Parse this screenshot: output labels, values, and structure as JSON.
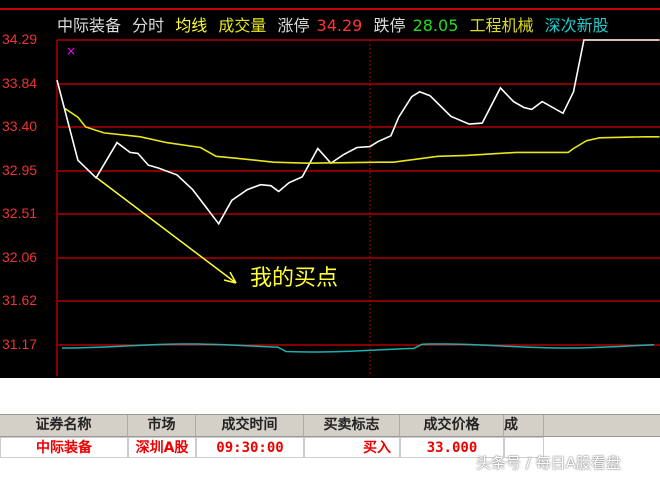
{
  "header": {
    "stock_name": "中际装备",
    "mode": "分时",
    "avg_line": "均线",
    "volume": "成交量",
    "limit_up_label": "涨停",
    "limit_up_value": "34.29",
    "limit_down_label": "跌停",
    "limit_down_value": "28.05",
    "industry": "工程机械",
    "board": "深次新股"
  },
  "colors": {
    "price_line": "#ffffff",
    "avg_line": "#e6e619",
    "grid": "#b00000",
    "indicator": "#1ab0b0",
    "annotation": "#ffff33",
    "marker": "#ff00ff"
  },
  "chart_data": {
    "type": "line",
    "y_ticks": [
      "34.29",
      "33.84",
      "33.40",
      "32.95",
      "32.51",
      "32.06",
      "31.62",
      "31.17"
    ],
    "ylim": [
      31.17,
      34.29
    ],
    "x_unit": "minutes since 09:30",
    "series": [
      {
        "role": "price",
        "points": [
          [
            0,
            33.88
          ],
          [
            8,
            33.06
          ],
          [
            15,
            32.88
          ],
          [
            23,
            33.24
          ],
          [
            28,
            33.14
          ],
          [
            31,
            33.13
          ],
          [
            35,
            33.01
          ],
          [
            39,
            32.98
          ],
          [
            46,
            32.91
          ],
          [
            52,
            32.76
          ],
          [
            58,
            32.55
          ],
          [
            62,
            32.41
          ],
          [
            67,
            32.65
          ],
          [
            73,
            32.76
          ],
          [
            78,
            32.81
          ],
          [
            82,
            32.8
          ],
          [
            85,
            32.74
          ],
          [
            89,
            32.83
          ],
          [
            94,
            32.89
          ],
          [
            100,
            33.18
          ],
          [
            105,
            33.03
          ],
          [
            110,
            33.12
          ],
          [
            115,
            33.19
          ],
          [
            120,
            33.2
          ],
          [
            123,
            33.25
          ],
          [
            128,
            33.31
          ],
          [
            131,
            33.5
          ],
          [
            136,
            33.71
          ],
          [
            139,
            33.76
          ],
          [
            143,
            33.72
          ],
          [
            151,
            33.51
          ],
          [
            158,
            33.43
          ],
          [
            163,
            33.44
          ],
          [
            170,
            33.8
          ],
          [
            175,
            33.66
          ],
          [
            179,
            33.6
          ],
          [
            182,
            33.58
          ],
          [
            186,
            33.66
          ],
          [
            194,
            33.54
          ],
          [
            198,
            33.76
          ],
          [
            202,
            34.29
          ],
          [
            231,
            34.29
          ]
        ]
      },
      {
        "role": "average",
        "points": [
          [
            3,
            33.59
          ],
          [
            8,
            33.5
          ],
          [
            11,
            33.4
          ],
          [
            18,
            33.34
          ],
          [
            32,
            33.3
          ],
          [
            42,
            33.24
          ],
          [
            55,
            33.19
          ],
          [
            61,
            33.1
          ],
          [
            69,
            33.08
          ],
          [
            83,
            33.04
          ],
          [
            96,
            33.03
          ],
          [
            124,
            33.04
          ],
          [
            129,
            33.04
          ],
          [
            146,
            33.1
          ],
          [
            157,
            33.11
          ],
          [
            176,
            33.14
          ],
          [
            196,
            33.14
          ],
          [
            198,
            33.18
          ],
          [
            203,
            33.26
          ],
          [
            208,
            33.29
          ],
          [
            225,
            33.3
          ],
          [
            231,
            33.3
          ]
        ]
      }
    ],
    "annotation": "我的买点"
  },
  "table": {
    "headers": [
      "证券名称",
      "市场",
      "成交时间",
      "买卖标志",
      "成交价格",
      "成"
    ],
    "rows": [
      [
        "中际装备",
        "深圳A股",
        "09:30:00",
        "买入",
        "33.000",
        ""
      ]
    ]
  },
  "watermark": "头条号 / 每日A股看盘"
}
